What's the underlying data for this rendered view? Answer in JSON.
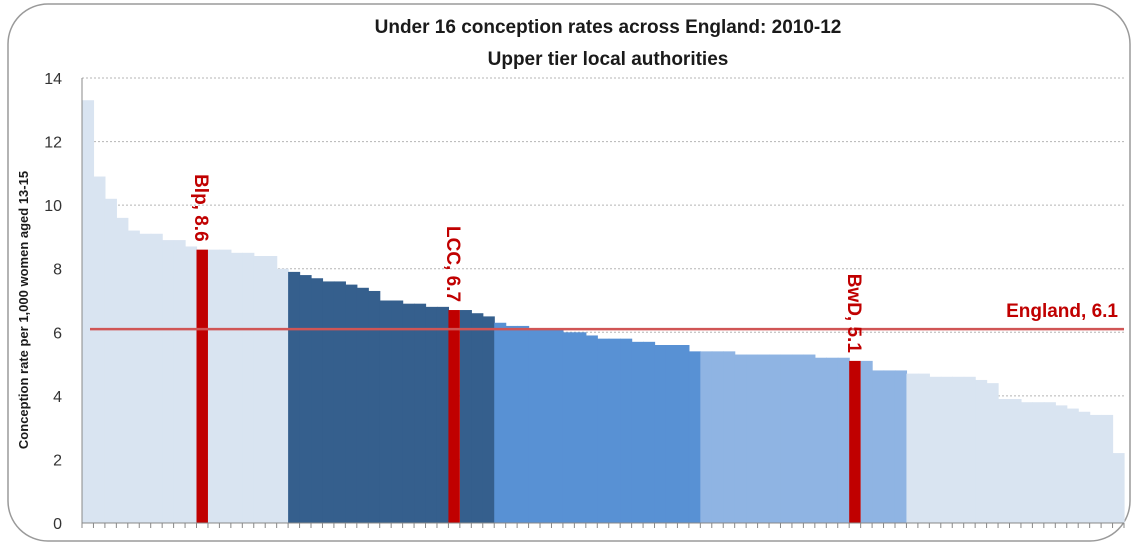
{
  "chart_data": {
    "type": "bar",
    "title": "Under 16 conception rates across England: 2010-12",
    "subtitle": "Upper tier local authorities",
    "xlabel": "",
    "ylabel": "Conception rate per 1,000 women aged 13-15",
    "ylim": [
      0,
      14
    ],
    "yticks": [
      "0",
      "2",
      "4",
      "6",
      "8",
      "10",
      "12",
      "14"
    ],
    "grid": true,
    "legend": "none",
    "colors": {
      "q1": "#14263f",
      "q2": "#355f8d",
      "q3": "#5891d4",
      "q4": "#8fb4e3",
      "q5": "#d9e4f1",
      "highlight": "#c00000",
      "reference": "#d05555"
    },
    "values": [
      13.3,
      10.9,
      10.2,
      9.6,
      9.2,
      9.1,
      9.1,
      8.9,
      8.9,
      8.7,
      8.6,
      8.6,
      8.6,
      8.5,
      8.5,
      8.4,
      8.4,
      8.0,
      7.9,
      7.8,
      7.7,
      7.6,
      7.6,
      7.5,
      7.4,
      7.3,
      7.0,
      7.0,
      6.9,
      6.9,
      6.8,
      6.8,
      6.7,
      6.7,
      6.6,
      6.5,
      6.3,
      6.2,
      6.2,
      6.1,
      6.1,
      6.1,
      6.0,
      6.0,
      5.9,
      5.8,
      5.8,
      5.8,
      5.7,
      5.7,
      5.6,
      5.6,
      5.6,
      5.4,
      5.4,
      5.4,
      5.4,
      5.3,
      5.3,
      5.3,
      5.3,
      5.3,
      5.3,
      5.3,
      5.2,
      5.2,
      5.2,
      5.1,
      5.1,
      4.8,
      4.8,
      4.8,
      4.7,
      4.7,
      4.6,
      4.6,
      4.6,
      4.6,
      4.5,
      4.4,
      3.9,
      3.9,
      3.8,
      3.8,
      3.8,
      3.7,
      3.6,
      3.5,
      3.4,
      3.4,
      2.2
    ],
    "quintile_sizes": [
      18,
      18,
      18,
      18,
      19
    ],
    "highlighted": [
      {
        "index": 10,
        "label": "Blp, 8.6",
        "value": 8.6
      },
      {
        "index": 32,
        "label": "LCC, 6.7",
        "value": 6.7
      },
      {
        "index": 67,
        "label": "BwD, 5.1",
        "value": 5.1
      }
    ],
    "reference_line": {
      "label": "England, 6.1",
      "value": 6.1
    }
  }
}
